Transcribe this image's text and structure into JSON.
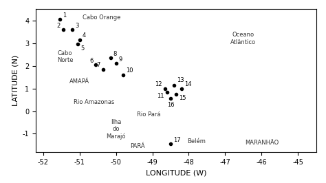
{
  "chart_data": {
    "type": "scatter",
    "x": [
      -51.55,
      -51.45,
      -51.2,
      -51.0,
      -51.05,
      -50.55,
      -50.35,
      -50.15,
      -50.0,
      -49.8,
      -48.6,
      -48.65,
      -48.4,
      -48.2,
      -48.35,
      -48.5,
      -48.5
    ],
    "values": [
      4.05,
      3.6,
      3.6,
      3.15,
      2.95,
      2.05,
      1.85,
      2.35,
      2.1,
      1.6,
      0.85,
      1.0,
      1.15,
      1.0,
      0.75,
      0.55,
      -1.45
    ],
    "labels": [
      "1",
      "2",
      "3",
      "4",
      "5",
      "6",
      "7",
      "8",
      "9",
      "10",
      "11",
      "12",
      "13",
      "14",
      "15",
      "16",
      "17"
    ],
    "color": "#000000",
    "xlim": [
      -52.2,
      -44.5
    ],
    "ylim": [
      -1.8,
      4.5
    ],
    "xticks": [
      -52,
      -51,
      -50,
      -49,
      -48,
      -47,
      -46,
      -45
    ],
    "yticks": [
      -1,
      0,
      1,
      2,
      3,
      4
    ],
    "xlabel": "LONGITUDE (W)",
    "ylabel": "LATITUDE (N)",
    "grid": false,
    "annotations": [
      {
        "text": "Cabo Orange",
        "x": -50.4,
        "y": 4.12
      },
      {
        "text": "Cabo\nNorte",
        "x": -51.4,
        "y": 2.4
      },
      {
        "text": "AMAPÁ",
        "x": -51.0,
        "y": 1.3
      },
      {
        "text": "Rio Amazonas",
        "x": -50.6,
        "y": 0.4
      },
      {
        "text": "Ilha\ndo\nMarajó",
        "x": -50.0,
        "y": -0.8
      },
      {
        "text": "Rio Pará",
        "x": -49.1,
        "y": -0.15
      },
      {
        "text": "Belém",
        "x": -47.8,
        "y": -1.35
      },
      {
        "text": "PARÁ",
        "x": -49.4,
        "y": -1.55
      },
      {
        "text": "MARANHÃO",
        "x": -46.0,
        "y": -1.4
      },
      {
        "text": "Oceano\nAtlântico",
        "x": -46.5,
        "y": 3.2
      }
    ]
  }
}
